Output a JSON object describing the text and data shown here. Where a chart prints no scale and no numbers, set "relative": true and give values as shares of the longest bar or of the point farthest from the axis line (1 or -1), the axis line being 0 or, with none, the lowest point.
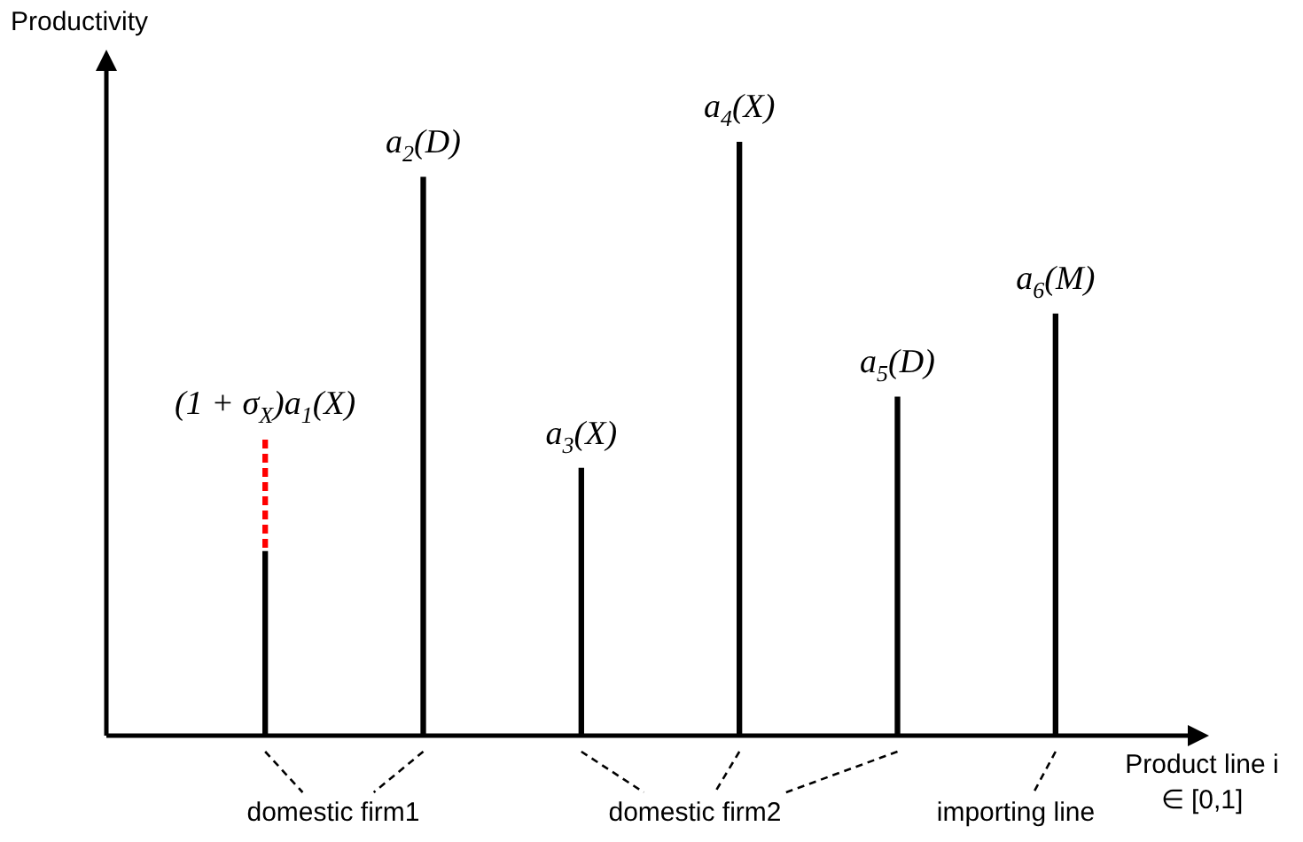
{
  "chart_data": {
    "type": "bar",
    "relative": true,
    "stacked": true,
    "ylabel": "Productivity",
    "xlabel": "Product line i ∈ [0,1]",
    "categories": [
      "(1 + σ$_{X}$)a$_{1}$(X)",
      "a$_{2}$(D)",
      "a$_{3}$(X)",
      "a$_{4}$(X)",
      "a$_{5}$(D)",
      "a$_{6}$(M)"
    ],
    "series": [
      {
        "color": "#000000",
        "values": [
          0.31,
          0.94,
          0.45,
          1,
          0.57,
          0.71
        ]
      },
      {
        "color": "#ff0000",
        "line_style": "dashed",
        "values": [
          0.19,
          null,
          null,
          null,
          null,
          null
        ]
      }
    ],
    "annotations": [
      "domestic firm1",
      "domestic firm2",
      "importing line"
    ]
  }
}
